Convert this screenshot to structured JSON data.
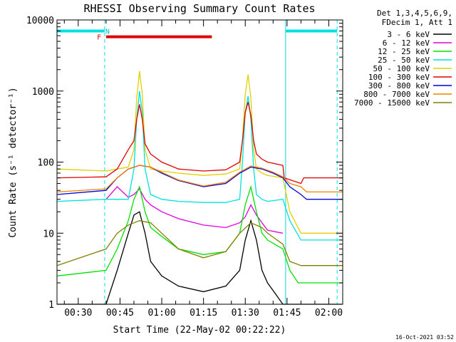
{
  "chart_data": {
    "type": "line",
    "title": "RHESSI Observing Summary Count Rates",
    "xlabel": "Start Time (22-May-02 00:22:22)",
    "ylabel": "Count Rate (s⁻¹ detector⁻¹)",
    "yscale": "log",
    "ylim": [
      1,
      10000
    ],
    "xlim_minutes": [
      22.37,
      125
    ],
    "x_ticks": [
      {
        "t": 30,
        "label": "00:30"
      },
      {
        "t": 45,
        "label": "00:45"
      },
      {
        "t": 60,
        "label": "01:00"
      },
      {
        "t": 75,
        "label": "01:15"
      },
      {
        "t": 90,
        "label": "01:30"
      },
      {
        "t": 105,
        "label": "01:45"
      },
      {
        "t": 120,
        "label": "02:00"
      }
    ],
    "y_ticks": [
      {
        "v": 1,
        "label": "1"
      },
      {
        "v": 10,
        "label": "10"
      },
      {
        "v": 100,
        "label": "100"
      },
      {
        "v": 1000,
        "label": "1000"
      },
      {
        "v": 10000,
        "label": "10000"
      }
    ],
    "legend": {
      "position": "top-right",
      "header": [
        "Det 1,3,4,5,6,9,",
        "FDecim 1, Att 1"
      ]
    },
    "series": [
      {
        "name": "3 - 6 keV",
        "color": "#000000",
        "x": [
          22.37,
          40,
          44,
          48,
          50,
          52,
          54,
          56,
          60,
          66,
          75,
          83,
          88,
          90,
          92,
          94,
          96,
          98,
          103.5,
          106,
          125
        ],
        "y": [
          1,
          1,
          3,
          10,
          18,
          20,
          10,
          4,
          2.5,
          1.8,
          1.5,
          1.8,
          3,
          8,
          15,
          8,
          3,
          2,
          1,
          1,
          1
        ]
      },
      {
        "name": "6 - 12 keV",
        "color": "#e000e0",
        "x": [
          40,
          44,
          48,
          50,
          52,
          54,
          56,
          60,
          66,
          75,
          83,
          88,
          90,
          92,
          94,
          96,
          98,
          103.5
        ],
        "y": [
          30,
          45,
          32,
          35,
          42,
          30,
          25,
          20,
          16,
          13,
          12,
          14,
          17,
          25,
          18,
          14,
          11,
          10
        ]
      },
      {
        "name": "12 - 25 keV",
        "color": "#00e000",
        "x": [
          22.37,
          40,
          44,
          48,
          50,
          52,
          54,
          56,
          60,
          66,
          75,
          83,
          88,
          90,
          92,
          94,
          96,
          98,
          103.5,
          106,
          109,
          125
        ],
        "y": [
          2.5,
          3,
          6,
          15,
          30,
          45,
          20,
          12,
          9,
          6,
          5,
          5.5,
          10,
          25,
          45,
          20,
          10,
          8,
          6,
          3,
          2,
          2
        ]
      },
      {
        "name": "25 - 50 keV",
        "color": "#00e0e0",
        "x": [
          22.37,
          40,
          44,
          48,
          50,
          51,
          52,
          53,
          54,
          56,
          60,
          66,
          75,
          83,
          88,
          89,
          90,
          91,
          92,
          93,
          94,
          96,
          98,
          103.5,
          106,
          110,
          125
        ],
        "y": [
          28,
          30,
          30,
          30,
          80,
          400,
          1000,
          500,
          80,
          35,
          30,
          28,
          27,
          27,
          30,
          100,
          500,
          850,
          400,
          80,
          35,
          30,
          28,
          30,
          15,
          8,
          8
        ]
      },
      {
        "name": "50 - 100 keV",
        "color": "#e0d000",
        "x": [
          22.37,
          40,
          44,
          48,
          50,
          51,
          52,
          53,
          54,
          56,
          60,
          66,
          75,
          83,
          88,
          89,
          90,
          91,
          92,
          93,
          94,
          96,
          98,
          103.5,
          106,
          110,
          125
        ],
        "y": [
          80,
          75,
          80,
          85,
          150,
          800,
          1900,
          900,
          150,
          80,
          75,
          70,
          65,
          68,
          80,
          200,
          900,
          1700,
          800,
          150,
          80,
          70,
          65,
          60,
          20,
          10,
          10
        ]
      },
      {
        "name": "100 - 300 keV",
        "color": "#e00000",
        "x": [
          22.37,
          40,
          44,
          48,
          50,
          51,
          52,
          53,
          54,
          56,
          60,
          66,
          75,
          83,
          88,
          89,
          90,
          91,
          92,
          93,
          94,
          96,
          98,
          103.5,
          104,
          110,
          111,
          125
        ],
        "y": [
          60,
          62,
          80,
          150,
          200,
          400,
          650,
          400,
          180,
          130,
          100,
          80,
          75,
          78,
          100,
          200,
          500,
          700,
          450,
          200,
          130,
          110,
          100,
          90,
          60,
          50,
          60,
          60
        ]
      },
      {
        "name": "300 - 800 keV",
        "color": "#0000e0",
        "x": [
          22.37,
          40,
          44,
          48,
          52,
          56,
          60,
          66,
          75,
          83,
          88,
          92,
          96,
          100,
          103.5,
          106,
          110,
          112,
          125
        ],
        "y": [
          35,
          40,
          60,
          80,
          90,
          85,
          70,
          55,
          45,
          50,
          70,
          85,
          80,
          70,
          60,
          45,
          35,
          30,
          30
        ]
      },
      {
        "name": "800 - 7000 keV",
        "color": "#f08000",
        "x": [
          22.37,
          40,
          44,
          48,
          52,
          56,
          60,
          66,
          75,
          83,
          88,
          92,
          96,
          100,
          103.5,
          106,
          110,
          112,
          125
        ],
        "y": [
          38,
          42,
          60,
          80,
          90,
          85,
          72,
          56,
          46,
          52,
          72,
          88,
          82,
          72,
          62,
          50,
          45,
          38,
          38
        ]
      },
      {
        "name": "7000 - 15000 keV",
        "color": "#808000",
        "x": [
          22.37,
          40,
          44,
          48,
          52,
          56,
          60,
          66,
          75,
          83,
          88,
          92,
          96,
          98,
          103.5,
          106,
          110,
          125
        ],
        "y": [
          3.5,
          6,
          10,
          13,
          15,
          14,
          10,
          6,
          4.5,
          5.5,
          10,
          14,
          12,
          10,
          7,
          4,
          3.5,
          3.5
        ]
      }
    ],
    "annotations": {
      "night_bars": [
        {
          "x0": 22.37,
          "x1": 39.5,
          "y": 7000
        },
        {
          "x0": 104.5,
          "x1": 123,
          "y": 7000
        }
      ],
      "night_dashes": [
        39.5,
        123
      ],
      "night_solid": [
        22.37,
        104.5
      ],
      "flare_bar": {
        "x0": 40,
        "x1": 78,
        "y": 5800
      },
      "marks": [
        {
          "text": "N",
          "t": 40.5,
          "v": 7000
        },
        {
          "text": "F",
          "t": 37.5,
          "v": 5800
        }
      ]
    },
    "footer": "16-Oct-2021 03:52"
  }
}
